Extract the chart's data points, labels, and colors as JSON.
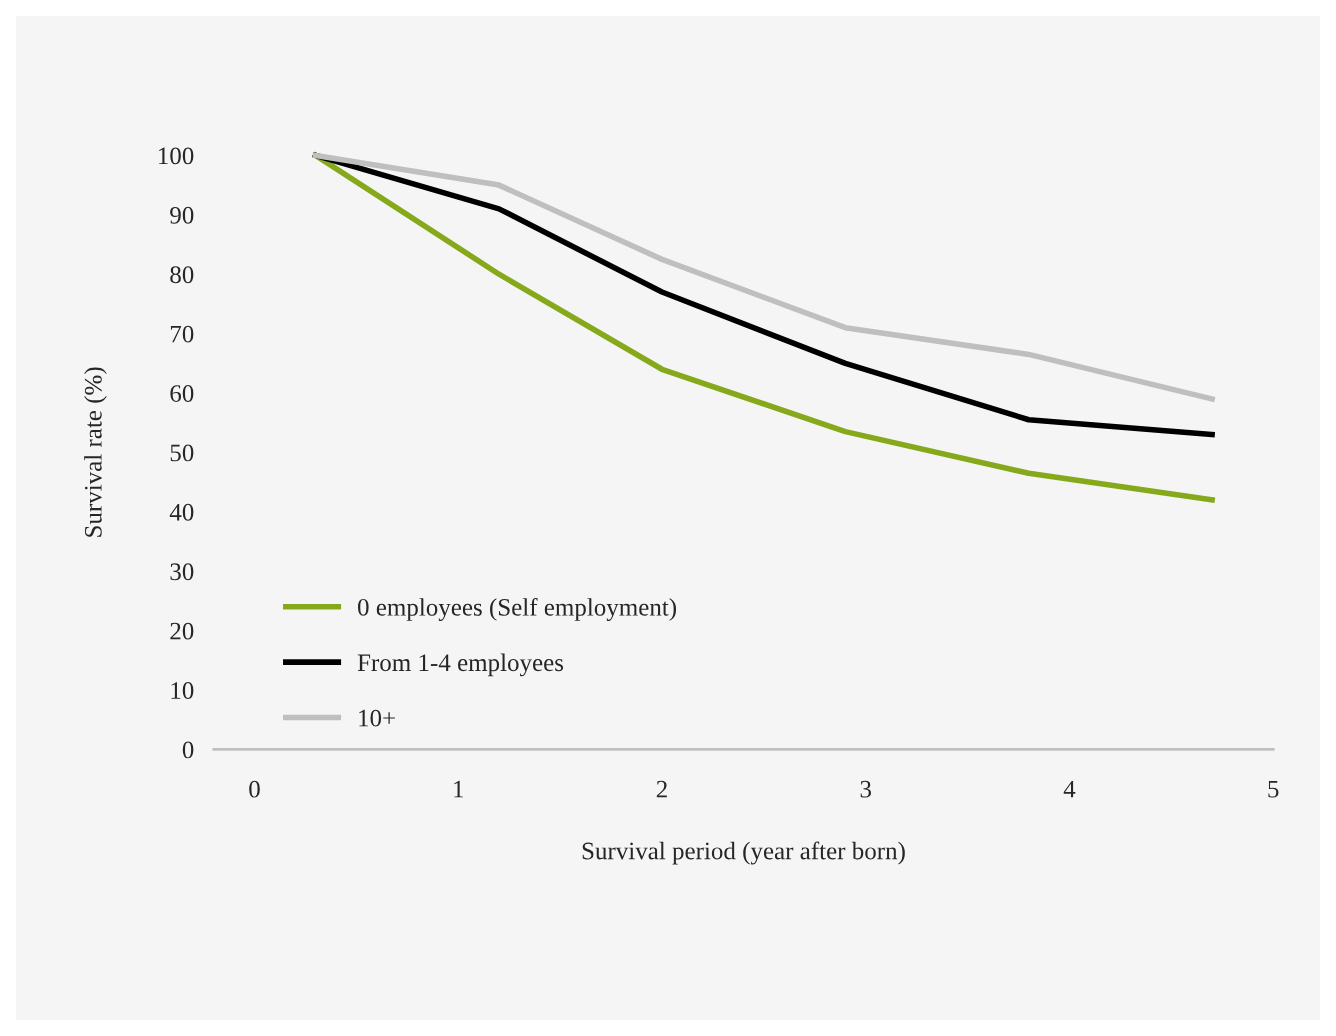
{
  "chart_data": {
    "type": "line",
    "xlabel": "Survival period (year after born)",
    "ylabel": "Survival rate (%)",
    "x": [
      0.3,
      1.2,
      2.0,
      2.9,
      3.8,
      4.7
    ],
    "xlim": [
      -0.2,
      5
    ],
    "xticks": [
      0,
      1,
      2,
      3,
      4,
      5
    ],
    "ylim": [
      0,
      100
    ],
    "yticks": [
      0,
      10,
      20,
      30,
      40,
      50,
      60,
      70,
      80,
      90,
      100
    ],
    "series": [
      {
        "name": "0 employees (Self employment)",
        "color": "#86a91c",
        "values": [
          100,
          80,
          64,
          53.5,
          46.5,
          42
        ]
      },
      {
        "name": "From 1-4 employees",
        "color": "#000000",
        "values": [
          100,
          91,
          77,
          65,
          55.5,
          53
        ]
      },
      {
        "name": "10+",
        "color": "#bfbfbf",
        "values": [
          100,
          95,
          82.5,
          71,
          66.5,
          59
        ]
      }
    ],
    "legend": "bottom left",
    "grid": false,
    "marker": "none",
    "line_style": "solid"
  }
}
